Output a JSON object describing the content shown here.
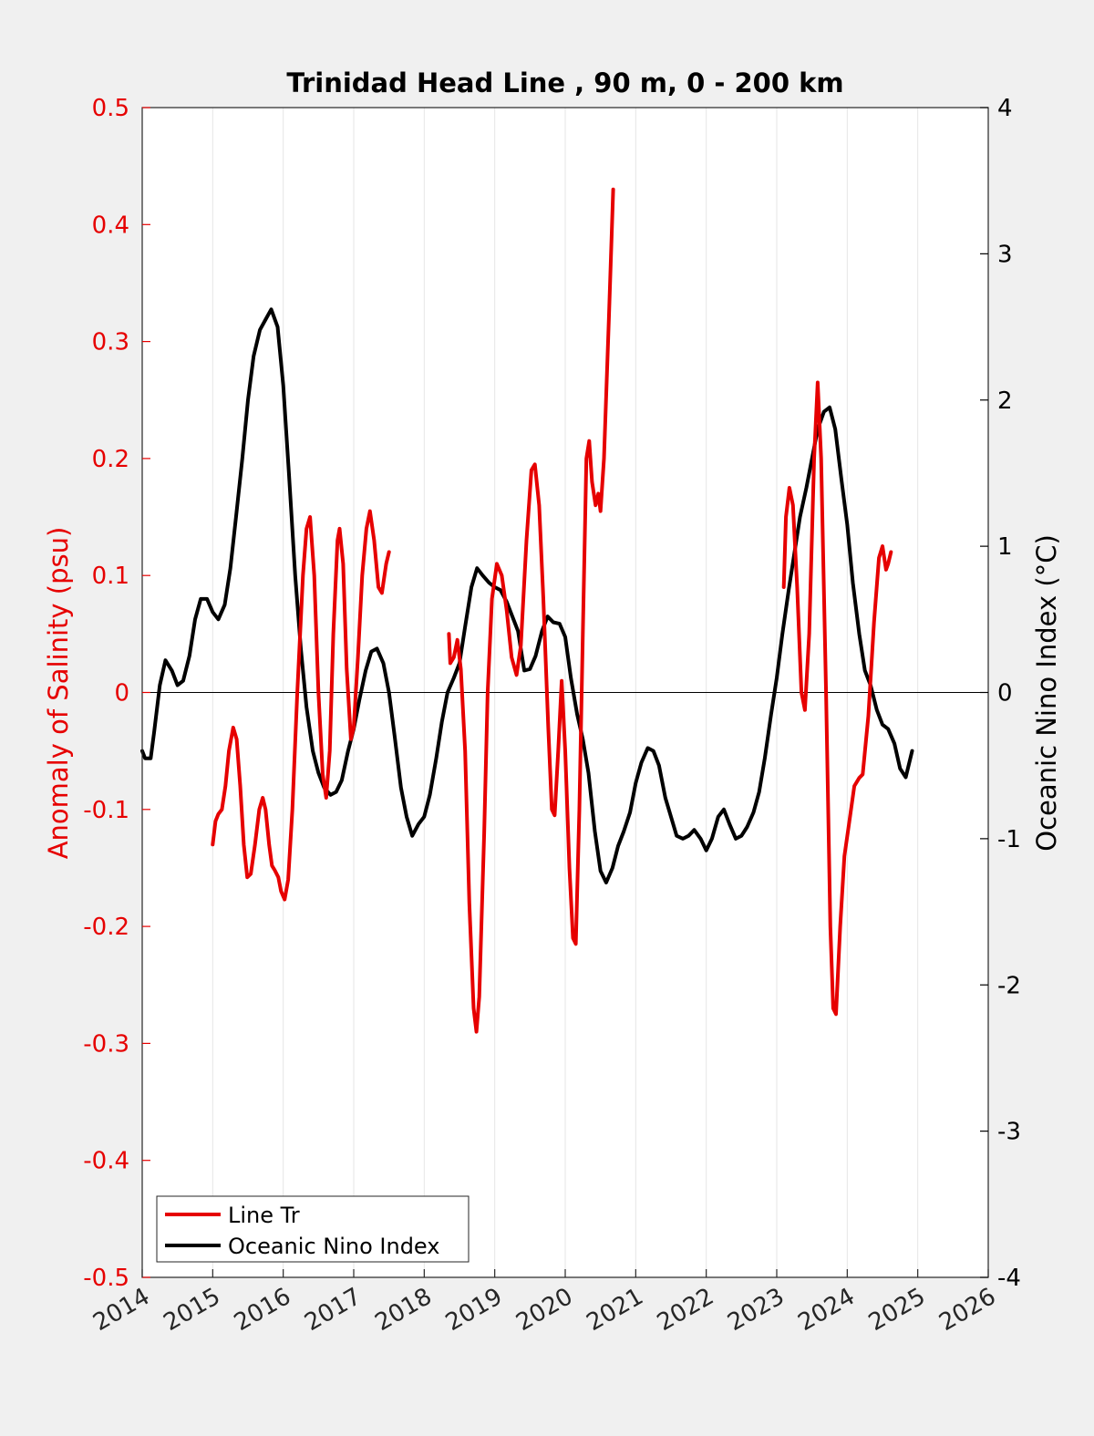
{
  "chart_data": {
    "type": "line",
    "title": "Trinidad Head Line , 90 m, 0 - 200 km",
    "xlabel": "",
    "ylabel_left": "Anomaly of Salinity (psu)",
    "ylabel_right": "Oceanic Nino Index (°C)",
    "xlim": [
      2014,
      2026
    ],
    "ylim_left": [
      -0.5,
      0.5
    ],
    "ylim_right": [
      -4,
      4
    ],
    "x_ticks": [
      "2014",
      "2015",
      "2016",
      "2017",
      "2018",
      "2019",
      "2020",
      "2021",
      "2022",
      "2023",
      "2024",
      "2025",
      "2026"
    ],
    "y_ticks_left": [
      "0.5",
      "0.4",
      "0.3",
      "0.2",
      "0.1",
      "0",
      "-0.1",
      "-0.2",
      "-0.3",
      "-0.4",
      "-0.5"
    ],
    "y_ticks_right": [
      "4",
      "3",
      "2",
      "1",
      "0",
      "-1",
      "-2",
      "-3",
      "-4"
    ],
    "grid": "vertical",
    "legend_location": "bottom-left",
    "colors": {
      "salinity": "#e60000",
      "oni": "#000000",
      "left_axis": "#e60000",
      "right_axis": "#000000"
    },
    "series": [
      {
        "name": "Line Tr",
        "axis": "left",
        "segments": [
          [
            [
              2015.0,
              -0.13
            ],
            [
              2015.04,
              -0.11
            ],
            [
              2015.08,
              -0.104
            ],
            [
              2015.13,
              -0.1
            ],
            [
              2015.18,
              -0.08
            ],
            [
              2015.23,
              -0.05
            ],
            [
              2015.29,
              -0.03
            ],
            [
              2015.34,
              -0.04
            ],
            [
              2015.39,
              -0.08
            ],
            [
              2015.44,
              -0.13
            ],
            [
              2015.49,
              -0.158
            ],
            [
              2015.54,
              -0.155
            ],
            [
              2015.6,
              -0.13
            ],
            [
              2015.66,
              -0.1
            ],
            [
              2015.71,
              -0.09
            ],
            [
              2015.75,
              -0.1
            ],
            [
              2015.8,
              -0.13
            ],
            [
              2015.84,
              -0.148
            ],
            [
              2015.88,
              -0.152
            ],
            [
              2015.93,
              -0.158
            ],
            [
              2015.97,
              -0.17
            ],
            [
              2016.02,
              -0.177
            ],
            [
              2016.07,
              -0.16
            ],
            [
              2016.13,
              -0.1
            ],
            [
              2016.2,
              0.0
            ],
            [
              2016.28,
              0.1
            ],
            [
              2016.33,
              0.14
            ],
            [
              2016.38,
              0.15
            ],
            [
              2016.44,
              0.1
            ],
            [
              2016.5,
              0.0
            ],
            [
              2016.56,
              -0.07
            ],
            [
              2016.61,
              -0.09
            ],
            [
              2016.66,
              -0.05
            ],
            [
              2016.71,
              0.05
            ],
            [
              2016.77,
              0.13
            ],
            [
              2016.8,
              0.14
            ],
            [
              2016.85,
              0.11
            ],
            [
              2016.9,
              0.02
            ],
            [
              2016.96,
              -0.04
            ],
            [
              2017.0,
              -0.03
            ],
            [
              2017.06,
              0.03
            ],
            [
              2017.12,
              0.1
            ],
            [
              2017.18,
              0.14
            ],
            [
              2017.23,
              0.155
            ],
            [
              2017.29,
              0.13
            ],
            [
              2017.35,
              0.09
            ],
            [
              2017.4,
              0.085
            ],
            [
              2017.46,
              0.11
            ],
            [
              2017.5,
              0.12
            ]
          ],
          [
            [
              2018.35,
              0.05
            ],
            [
              2018.37,
              0.025
            ],
            [
              2018.42,
              0.03
            ],
            [
              2018.47,
              0.045
            ],
            [
              2018.52,
              0.02
            ],
            [
              2018.58,
              -0.05
            ],
            [
              2018.64,
              -0.18
            ],
            [
              2018.7,
              -0.27
            ],
            [
              2018.74,
              -0.29
            ],
            [
              2018.78,
              -0.26
            ],
            [
              2018.85,
              -0.12
            ],
            [
              2018.9,
              0.0
            ],
            [
              2018.96,
              0.08
            ],
            [
              2019.03,
              0.11
            ],
            [
              2019.1,
              0.1
            ],
            [
              2019.17,
              0.07
            ],
            [
              2019.24,
              0.03
            ],
            [
              2019.31,
              0.015
            ],
            [
              2019.37,
              0.04
            ],
            [
              2019.45,
              0.13
            ],
            [
              2019.52,
              0.19
            ],
            [
              2019.57,
              0.195
            ],
            [
              2019.63,
              0.16
            ],
            [
              2019.69,
              0.08
            ],
            [
              2019.76,
              -0.03
            ],
            [
              2019.81,
              -0.1
            ],
            [
              2019.85,
              -0.105
            ],
            [
              2019.9,
              -0.05
            ],
            [
              2019.95,
              0.01
            ],
            [
              2020.0,
              -0.05
            ],
            [
              2020.06,
              -0.15
            ],
            [
              2020.11,
              -0.21
            ],
            [
              2020.15,
              -0.215
            ],
            [
              2020.2,
              -0.1
            ],
            [
              2020.25,
              0.05
            ],
            [
              2020.3,
              0.2
            ],
            [
              2020.34,
              0.215
            ],
            [
              2020.38,
              0.18
            ],
            [
              2020.43,
              0.16
            ],
            [
              2020.47,
              0.17
            ],
            [
              2020.5,
              0.155
            ],
            [
              2020.55,
              0.2
            ],
            [
              2020.62,
              0.32
            ],
            [
              2020.68,
              0.43
            ]
          ],
          [
            [
              2023.1,
              0.09
            ],
            [
              2023.13,
              0.15
            ],
            [
              2023.18,
              0.175
            ],
            [
              2023.23,
              0.16
            ],
            [
              2023.29,
              0.09
            ],
            [
              2023.35,
              0.0
            ],
            [
              2023.4,
              -0.015
            ],
            [
              2023.46,
              0.05
            ],
            [
              2023.53,
              0.2
            ],
            [
              2023.58,
              0.265
            ],
            [
              2023.63,
              0.2
            ],
            [
              2023.7,
              0.0
            ],
            [
              2023.76,
              -0.2
            ],
            [
              2023.8,
              -0.27
            ],
            [
              2023.84,
              -0.275
            ],
            [
              2023.9,
              -0.2
            ],
            [
              2023.96,
              -0.14
            ],
            [
              2024.03,
              -0.11
            ],
            [
              2024.1,
              -0.08
            ],
            [
              2024.17,
              -0.073
            ],
            [
              2024.22,
              -0.07
            ],
            [
              2024.3,
              -0.02
            ],
            [
              2024.38,
              0.06
            ],
            [
              2024.45,
              0.115
            ],
            [
              2024.5,
              0.125
            ],
            [
              2024.55,
              0.105
            ],
            [
              2024.58,
              0.11
            ],
            [
              2024.62,
              0.12
            ]
          ]
        ]
      },
      {
        "name": "Oceanic Nino Index",
        "axis": "right",
        "segments": [
          [
            [
              2014.0,
              -0.4
            ],
            [
              2014.04,
              -0.45
            ],
            [
              2014.12,
              -0.45
            ],
            [
              2014.17,
              -0.27
            ],
            [
              2014.25,
              0.05
            ],
            [
              2014.33,
              0.22
            ],
            [
              2014.42,
              0.15
            ],
            [
              2014.5,
              0.05
            ],
            [
              2014.58,
              0.08
            ],
            [
              2014.67,
              0.25
            ],
            [
              2014.75,
              0.5
            ],
            [
              2014.83,
              0.64
            ],
            [
              2014.92,
              0.64
            ],
            [
              2015.0,
              0.55
            ],
            [
              2015.08,
              0.5
            ],
            [
              2015.17,
              0.6
            ],
            [
              2015.25,
              0.85
            ],
            [
              2015.33,
              1.2
            ],
            [
              2015.42,
              1.6
            ],
            [
              2015.5,
              2.0
            ],
            [
              2015.58,
              2.3
            ],
            [
              2015.67,
              2.48
            ],
            [
              2015.75,
              2.55
            ],
            [
              2015.83,
              2.62
            ],
            [
              2015.92,
              2.5
            ],
            [
              2016.0,
              2.1
            ],
            [
              2016.08,
              1.5
            ],
            [
              2016.17,
              0.8
            ],
            [
              2016.25,
              0.3
            ],
            [
              2016.33,
              -0.1
            ],
            [
              2016.42,
              -0.4
            ],
            [
              2016.5,
              -0.55
            ],
            [
              2016.58,
              -0.65
            ],
            [
              2016.67,
              -0.7
            ],
            [
              2016.75,
              -0.68
            ],
            [
              2016.83,
              -0.6
            ],
            [
              2016.92,
              -0.4
            ],
            [
              2017.0,
              -0.25
            ],
            [
              2017.08,
              -0.05
            ],
            [
              2017.17,
              0.15
            ],
            [
              2017.25,
              0.28
            ],
            [
              2017.33,
              0.3
            ],
            [
              2017.42,
              0.2
            ],
            [
              2017.5,
              0.0
            ],
            [
              2017.58,
              -0.3
            ],
            [
              2017.67,
              -0.65
            ],
            [
              2017.75,
              -0.85
            ],
            [
              2017.83,
              -0.98
            ],
            [
              2017.92,
              -0.9
            ],
            [
              2018.0,
              -0.85
            ],
            [
              2018.08,
              -0.7
            ],
            [
              2018.17,
              -0.45
            ],
            [
              2018.25,
              -0.2
            ],
            [
              2018.33,
              0.0
            ],
            [
              2018.42,
              0.1
            ],
            [
              2018.5,
              0.2
            ],
            [
              2018.58,
              0.45
            ],
            [
              2018.67,
              0.72
            ],
            [
              2018.75,
              0.85
            ],
            [
              2018.83,
              0.8
            ],
            [
              2018.92,
              0.75
            ],
            [
              2019.0,
              0.72
            ],
            [
              2019.08,
              0.7
            ],
            [
              2019.17,
              0.62
            ],
            [
              2019.25,
              0.52
            ],
            [
              2019.33,
              0.42
            ],
            [
              2019.42,
              0.15
            ],
            [
              2019.5,
              0.16
            ],
            [
              2019.58,
              0.25
            ],
            [
              2019.67,
              0.42
            ],
            [
              2019.75,
              0.52
            ],
            [
              2019.83,
              0.48
            ],
            [
              2019.92,
              0.47
            ],
            [
              2020.0,
              0.38
            ],
            [
              2020.08,
              0.1
            ],
            [
              2020.17,
              -0.15
            ],
            [
              2020.25,
              -0.32
            ],
            [
              2020.33,
              -0.55
            ],
            [
              2020.42,
              -0.95
            ],
            [
              2020.5,
              -1.22
            ],
            [
              2020.58,
              -1.3
            ],
            [
              2020.67,
              -1.2
            ],
            [
              2020.75,
              -1.05
            ],
            [
              2020.83,
              -0.95
            ],
            [
              2020.92,
              -0.82
            ],
            [
              2021.0,
              -0.62
            ],
            [
              2021.08,
              -0.48
            ],
            [
              2021.17,
              -0.38
            ],
            [
              2021.25,
              -0.4
            ],
            [
              2021.33,
              -0.5
            ],
            [
              2021.42,
              -0.72
            ],
            [
              2021.5,
              -0.85
            ],
            [
              2021.58,
              -0.98
            ],
            [
              2021.67,
              -1.0
            ],
            [
              2021.75,
              -0.98
            ],
            [
              2021.83,
              -0.94
            ],
            [
              2021.92,
              -1.0
            ],
            [
              2022.0,
              -1.08
            ],
            [
              2022.08,
              -1.0
            ],
            [
              2022.17,
              -0.85
            ],
            [
              2022.25,
              -0.8
            ],
            [
              2022.33,
              -0.9
            ],
            [
              2022.42,
              -1.0
            ],
            [
              2022.5,
              -0.98
            ],
            [
              2022.58,
              -0.92
            ],
            [
              2022.67,
              -0.82
            ],
            [
              2022.75,
              -0.68
            ],
            [
              2022.83,
              -0.45
            ],
            [
              2022.92,
              -0.15
            ],
            [
              2023.0,
              0.1
            ],
            [
              2023.08,
              0.4
            ],
            [
              2023.17,
              0.7
            ],
            [
              2023.25,
              0.95
            ],
            [
              2023.33,
              1.2
            ],
            [
              2023.42,
              1.4
            ],
            [
              2023.5,
              1.6
            ],
            [
              2023.58,
              1.8
            ],
            [
              2023.67,
              1.92
            ],
            [
              2023.75,
              1.95
            ],
            [
              2023.83,
              1.8
            ],
            [
              2023.92,
              1.45
            ],
            [
              2024.0,
              1.15
            ],
            [
              2024.08,
              0.75
            ],
            [
              2024.17,
              0.4
            ],
            [
              2024.25,
              0.15
            ],
            [
              2024.33,
              0.05
            ],
            [
              2024.42,
              -0.12
            ],
            [
              2024.5,
              -0.22
            ],
            [
              2024.58,
              -0.25
            ],
            [
              2024.67,
              -0.35
            ],
            [
              2024.75,
              -0.52
            ],
            [
              2024.83,
              -0.58
            ],
            [
              2024.92,
              -0.4
            ]
          ]
        ]
      }
    ]
  }
}
